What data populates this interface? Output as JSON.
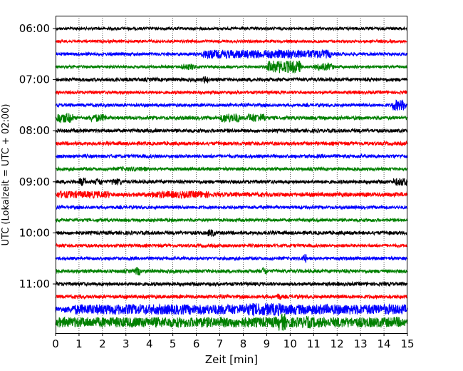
{
  "chart_data": {
    "type": "line",
    "title": "",
    "xlabel": "Zeit  [min]",
    "ylabel": "UTC (Lokalzeit = UTC + 02:00)",
    "xlim": [
      0,
      15
    ],
    "x_ticks": [
      "0",
      "1",
      "2",
      "3",
      "4",
      "5",
      "6",
      "7",
      "8",
      "9",
      "10",
      "11",
      "12",
      "13",
      "14",
      "15"
    ],
    "y_ticks": [
      "06:00",
      "07:00",
      "08:00",
      "09:00",
      "10:00",
      "11:00"
    ],
    "grid": "vertical dotted at each minute",
    "colors": [
      "#000000",
      "#ff0000",
      "#0000ff",
      "#008000"
    ],
    "series": [
      {
        "start": "06:00",
        "color": "#000000",
        "level": 0.35,
        "bursts": []
      },
      {
        "start": "06:15",
        "color": "#ff0000",
        "level": 0.35,
        "bursts": []
      },
      {
        "start": "06:30",
        "color": "#0000ff",
        "level": 0.4,
        "bursts": [
          {
            "from": 6.2,
            "to": 11.8,
            "amp": 1.1
          }
        ]
      },
      {
        "start": "06:45",
        "color": "#008000",
        "level": 0.35,
        "bursts": [
          {
            "from": 5.3,
            "to": 6.0,
            "amp": 0.8
          },
          {
            "from": 9.0,
            "to": 10.5,
            "amp": 1.6
          },
          {
            "from": 11.0,
            "to": 11.9,
            "amp": 0.9
          }
        ]
      },
      {
        "start": "07:00",
        "color": "#000000",
        "level": 0.45,
        "bursts": [
          {
            "from": 6.3,
            "to": 6.5,
            "amp": 1.0
          }
        ]
      },
      {
        "start": "07:15",
        "color": "#ff0000",
        "level": 0.4,
        "bursts": []
      },
      {
        "start": "07:30",
        "color": "#0000ff",
        "level": 0.4,
        "bursts": [
          {
            "from": 14.3,
            "to": 15.0,
            "amp": 1.4
          }
        ]
      },
      {
        "start": "07:45",
        "color": "#008000",
        "level": 0.45,
        "bursts": [
          {
            "from": 0.0,
            "to": 0.8,
            "amp": 1.3
          },
          {
            "from": 1.4,
            "to": 2.2,
            "amp": 1.0
          },
          {
            "from": 7.0,
            "to": 7.9,
            "amp": 1.2
          },
          {
            "from": 8.1,
            "to": 9.0,
            "amp": 1.1
          }
        ]
      },
      {
        "start": "08:00",
        "color": "#000000",
        "level": 0.45,
        "bursts": []
      },
      {
        "start": "08:15",
        "color": "#ff0000",
        "level": 0.45,
        "bursts": []
      },
      {
        "start": "08:30",
        "color": "#0000ff",
        "level": 0.45,
        "bursts": []
      },
      {
        "start": "08:45",
        "color": "#008000",
        "level": 0.4,
        "bursts": [
          {
            "from": 2.6,
            "to": 4.0,
            "amp": 0.6
          }
        ]
      },
      {
        "start": "09:00",
        "color": "#000000",
        "level": 0.45,
        "bursts": [
          {
            "from": 1.0,
            "to": 1.3,
            "amp": 1.1
          },
          {
            "from": 1.7,
            "to": 2.0,
            "amp": 0.9
          },
          {
            "from": 2.4,
            "to": 2.8,
            "amp": 0.9
          },
          {
            "from": 14.4,
            "to": 15.0,
            "amp": 1.0
          }
        ]
      },
      {
        "start": "09:15",
        "color": "#ff0000",
        "level": 0.55,
        "bursts": [
          {
            "from": 0.0,
            "to": 2.4,
            "amp": 0.9
          },
          {
            "from": 4.0,
            "to": 6.6,
            "amp": 0.9
          }
        ]
      },
      {
        "start": "09:30",
        "color": "#0000ff",
        "level": 0.4,
        "bursts": []
      },
      {
        "start": "09:45",
        "color": "#008000",
        "level": 0.4,
        "bursts": []
      },
      {
        "start": "10:00",
        "color": "#000000",
        "level": 0.45,
        "bursts": [
          {
            "from": 6.5,
            "to": 6.8,
            "amp": 1.0
          }
        ]
      },
      {
        "start": "10:15",
        "color": "#ff0000",
        "level": 0.4,
        "bursts": []
      },
      {
        "start": "10:30",
        "color": "#0000ff",
        "level": 0.4,
        "bursts": [
          {
            "from": 10.5,
            "to": 10.7,
            "amp": 1.2
          }
        ]
      },
      {
        "start": "10:45",
        "color": "#008000",
        "level": 0.45,
        "bursts": [
          {
            "from": 3.4,
            "to": 3.6,
            "amp": 1.1
          },
          {
            "from": 8.8,
            "to": 9.0,
            "amp": 1.0
          }
        ]
      },
      {
        "start": "11:00",
        "color": "#000000",
        "level": 0.45,
        "bursts": []
      },
      {
        "start": "11:15",
        "color": "#ff0000",
        "level": 0.45,
        "bursts": [
          {
            "from": 9.4,
            "to": 9.6,
            "amp": 0.9
          }
        ]
      },
      {
        "start": "11:30",
        "color": "#0000ff",
        "level": 0.8,
        "bursts": [
          {
            "from": 0.6,
            "to": 15.0,
            "amp": 1.3
          },
          {
            "from": 8.0,
            "to": 9.8,
            "amp": 1.6
          }
        ]
      },
      {
        "start": "11:45",
        "color": "#008000",
        "level": 0.75,
        "bursts": [
          {
            "from": 0.0,
            "to": 15.0,
            "amp": 1.3
          },
          {
            "from": 9.5,
            "to": 9.8,
            "amp": 2.2
          },
          {
            "from": 10.7,
            "to": 10.9,
            "amp": 1.6
          }
        ]
      }
    ]
  }
}
